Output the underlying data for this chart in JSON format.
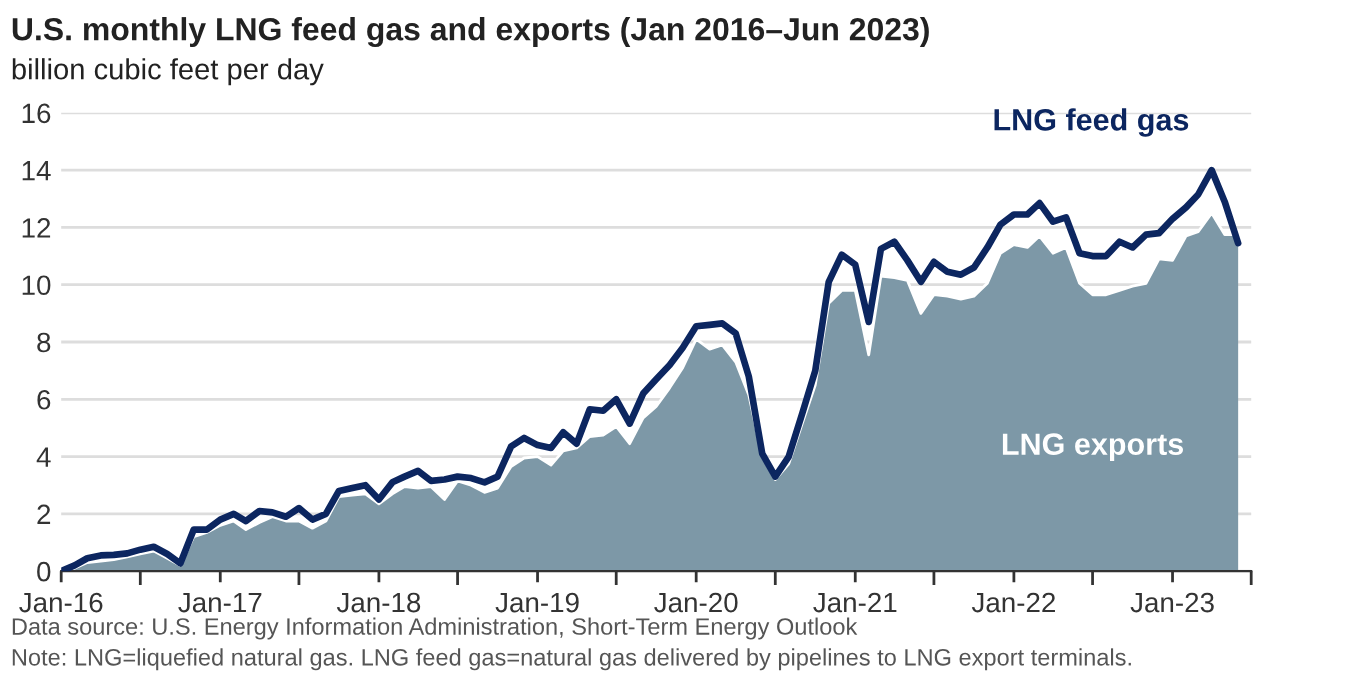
{
  "chart_data": {
    "type": "line",
    "title": "U.S. monthly LNG feed gas and exports (Jan 2016–Jun 2023)",
    "subtitle": "billion cubic feet per day",
    "x": [
      "2016-01",
      "2016-02",
      "2016-03",
      "2016-04",
      "2016-05",
      "2016-06",
      "2016-07",
      "2016-08",
      "2016-09",
      "2016-10",
      "2016-11",
      "2016-12",
      "2017-01",
      "2017-02",
      "2017-03",
      "2017-04",
      "2017-05",
      "2017-06",
      "2017-07",
      "2017-08",
      "2017-09",
      "2017-10",
      "2017-11",
      "2017-12",
      "2018-01",
      "2018-02",
      "2018-03",
      "2018-04",
      "2018-05",
      "2018-06",
      "2018-07",
      "2018-08",
      "2018-09",
      "2018-10",
      "2018-11",
      "2018-12",
      "2019-01",
      "2019-02",
      "2019-03",
      "2019-04",
      "2019-05",
      "2019-06",
      "2019-07",
      "2019-08",
      "2019-09",
      "2019-10",
      "2019-11",
      "2019-12",
      "2020-01",
      "2020-02",
      "2020-03",
      "2020-04",
      "2020-05",
      "2020-06",
      "2020-07",
      "2020-08",
      "2020-09",
      "2020-10",
      "2020-11",
      "2020-12",
      "2021-01",
      "2021-02",
      "2021-03",
      "2021-04",
      "2021-05",
      "2021-06",
      "2021-07",
      "2021-08",
      "2021-09",
      "2021-10",
      "2021-11",
      "2021-12",
      "2022-01",
      "2022-02",
      "2022-03",
      "2022-04",
      "2022-05",
      "2022-06",
      "2022-07",
      "2022-08",
      "2022-09",
      "2022-10",
      "2022-11",
      "2022-12",
      "2023-01",
      "2023-02",
      "2023-03",
      "2023-04",
      "2023-05",
      "2023-06"
    ],
    "series": [
      {
        "name": "LNG exports",
        "type": "area",
        "color": "#7d98a7",
        "values": [
          0,
          0.1,
          0.3,
          0.35,
          0.4,
          0.5,
          0.6,
          0.7,
          0.45,
          0.2,
          1.2,
          1.35,
          1.6,
          1.75,
          1.45,
          1.7,
          1.9,
          1.75,
          1.75,
          1.5,
          1.75,
          2.6,
          2.65,
          2.7,
          2.35,
          2.7,
          2.95,
          2.9,
          2.95,
          2.5,
          3.15,
          3.0,
          2.75,
          2.9,
          3.65,
          3.95,
          4.0,
          3.7,
          4.2,
          4.3,
          4.7,
          4.75,
          5.05,
          4.45,
          5.35,
          5.75,
          6.4,
          7.1,
          8.1,
          7.75,
          7.9,
          7.3,
          6.15,
          4.0,
          3.2,
          3.75,
          5.15,
          6.5,
          9.35,
          9.8,
          9.8,
          7.55,
          10.3,
          10.25,
          10.15,
          9.0,
          9.65,
          9.6,
          9.5,
          9.6,
          10.05,
          11.1,
          11.4,
          11.3,
          11.7,
          11.1,
          11.3,
          10.05,
          9.65,
          9.65,
          9.8,
          9.95,
          10.05,
          10.9,
          10.85,
          11.7,
          11.85,
          12.5,
          11.75,
          11.75
        ]
      },
      {
        "name": "LNG feed gas",
        "color": "#0c2660",
        "values": [
          0,
          0.2,
          0.45,
          0.55,
          0.57,
          0.62,
          0.75,
          0.85,
          0.6,
          0.27,
          1.45,
          1.45,
          1.8,
          2.0,
          1.75,
          2.1,
          2.05,
          1.9,
          2.2,
          1.8,
          2.0,
          2.8,
          2.9,
          3.0,
          2.5,
          3.1,
          3.3,
          3.5,
          3.15,
          3.2,
          3.3,
          3.25,
          3.1,
          3.3,
          4.35,
          4.65,
          4.4,
          4.3,
          4.85,
          4.45,
          5.65,
          5.6,
          6.0,
          5.15,
          6.2,
          6.7,
          7.2,
          7.8,
          8.55,
          8.6,
          8.65,
          8.3,
          6.8,
          4.1,
          3.3,
          4.0,
          5.5,
          7.0,
          10.1,
          11.05,
          10.7,
          8.7,
          11.25,
          11.5,
          10.85,
          10.1,
          10.8,
          10.45,
          10.35,
          10.6,
          11.3,
          12.1,
          12.45,
          12.45,
          12.85,
          12.2,
          12.35,
          11.1,
          11.0,
          11.0,
          11.5,
          11.3,
          11.75,
          11.8,
          12.3,
          12.7,
          13.15,
          14.0,
          12.9,
          11.45
        ]
      }
    ],
    "xlim": [
      "2016-01",
      "2023-07"
    ],
    "xticks": [
      {
        "value": "2016-01",
        "label": "Jan-16"
      },
      {
        "value": "2016-07",
        "label": null
      },
      {
        "value": "2017-01",
        "label": "Jan-17"
      },
      {
        "value": "2017-07",
        "label": null
      },
      {
        "value": "2018-01",
        "label": "Jan-18"
      },
      {
        "value": "2018-07",
        "label": null
      },
      {
        "value": "2019-01",
        "label": "Jan-19"
      },
      {
        "value": "2019-07",
        "label": null
      },
      {
        "value": "2020-01",
        "label": "Jan-20"
      },
      {
        "value": "2020-07",
        "label": null
      },
      {
        "value": "2021-01",
        "label": "Jan-21"
      },
      {
        "value": "2021-07",
        "label": null
      },
      {
        "value": "2022-01",
        "label": "Jan-22"
      },
      {
        "value": "2022-07",
        "label": null
      },
      {
        "value": "2023-01",
        "label": "Jan-23"
      },
      {
        "value": "2023-07",
        "label": null
      }
    ],
    "ylim": [
      0,
      16
    ],
    "yticks": [
      0,
      2,
      4,
      6,
      8,
      10,
      12,
      14,
      16
    ],
    "grid": "y",
    "legend": false,
    "annotations": [
      "Data source: U.S. Energy Information Administration, Short-Term Energy Outlook",
      "Note: LNG=liquefied natural gas. LNG feed gas=natural gas delivered by pipelines to LNG export terminals."
    ]
  }
}
